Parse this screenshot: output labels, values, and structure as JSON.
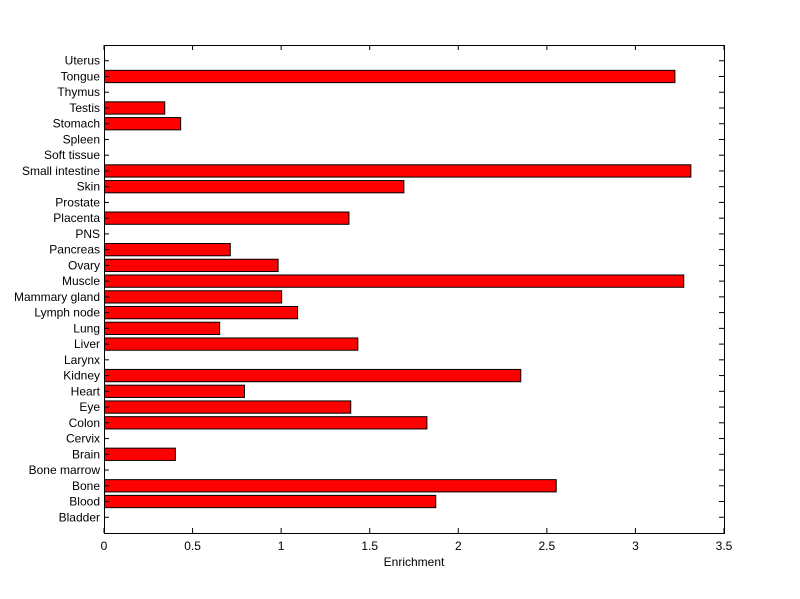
{
  "chart_data": {
    "type": "bar",
    "orientation": "horizontal",
    "xlabel": "Enrichment",
    "ylabel": "",
    "title": "",
    "xlim": [
      0,
      3.5
    ],
    "xticks": [
      "0",
      "0.5",
      "1",
      "1.5",
      "2",
      "2.5",
      "3",
      "3.5"
    ],
    "bar_color": "#ff0000",
    "grid": false,
    "categories": [
      "Bladder",
      "Blood",
      "Bone",
      "Bone marrow",
      "Brain",
      "Cervix",
      "Colon",
      "Eye",
      "Heart",
      "Kidney",
      "Larynx",
      "Liver",
      "Lung",
      "Lymph node",
      "Mammary gland",
      "Muscle",
      "Ovary",
      "Pancreas",
      "PNS",
      "Placenta",
      "Prostate",
      "Skin",
      "Small intestine",
      "Soft tissue",
      "Spleen",
      "Stomach",
      "Testis",
      "Thymus",
      "Tongue",
      "Uterus"
    ],
    "values": [
      0,
      1.87,
      2.55,
      0,
      0.4,
      0,
      1.82,
      1.39,
      0.79,
      2.35,
      0,
      1.43,
      0.65,
      1.09,
      1.0,
      3.27,
      0.98,
      0.71,
      0,
      1.38,
      0,
      1.69,
      3.31,
      0,
      0,
      0.43,
      0.34,
      0,
      3.22,
      0
    ]
  }
}
